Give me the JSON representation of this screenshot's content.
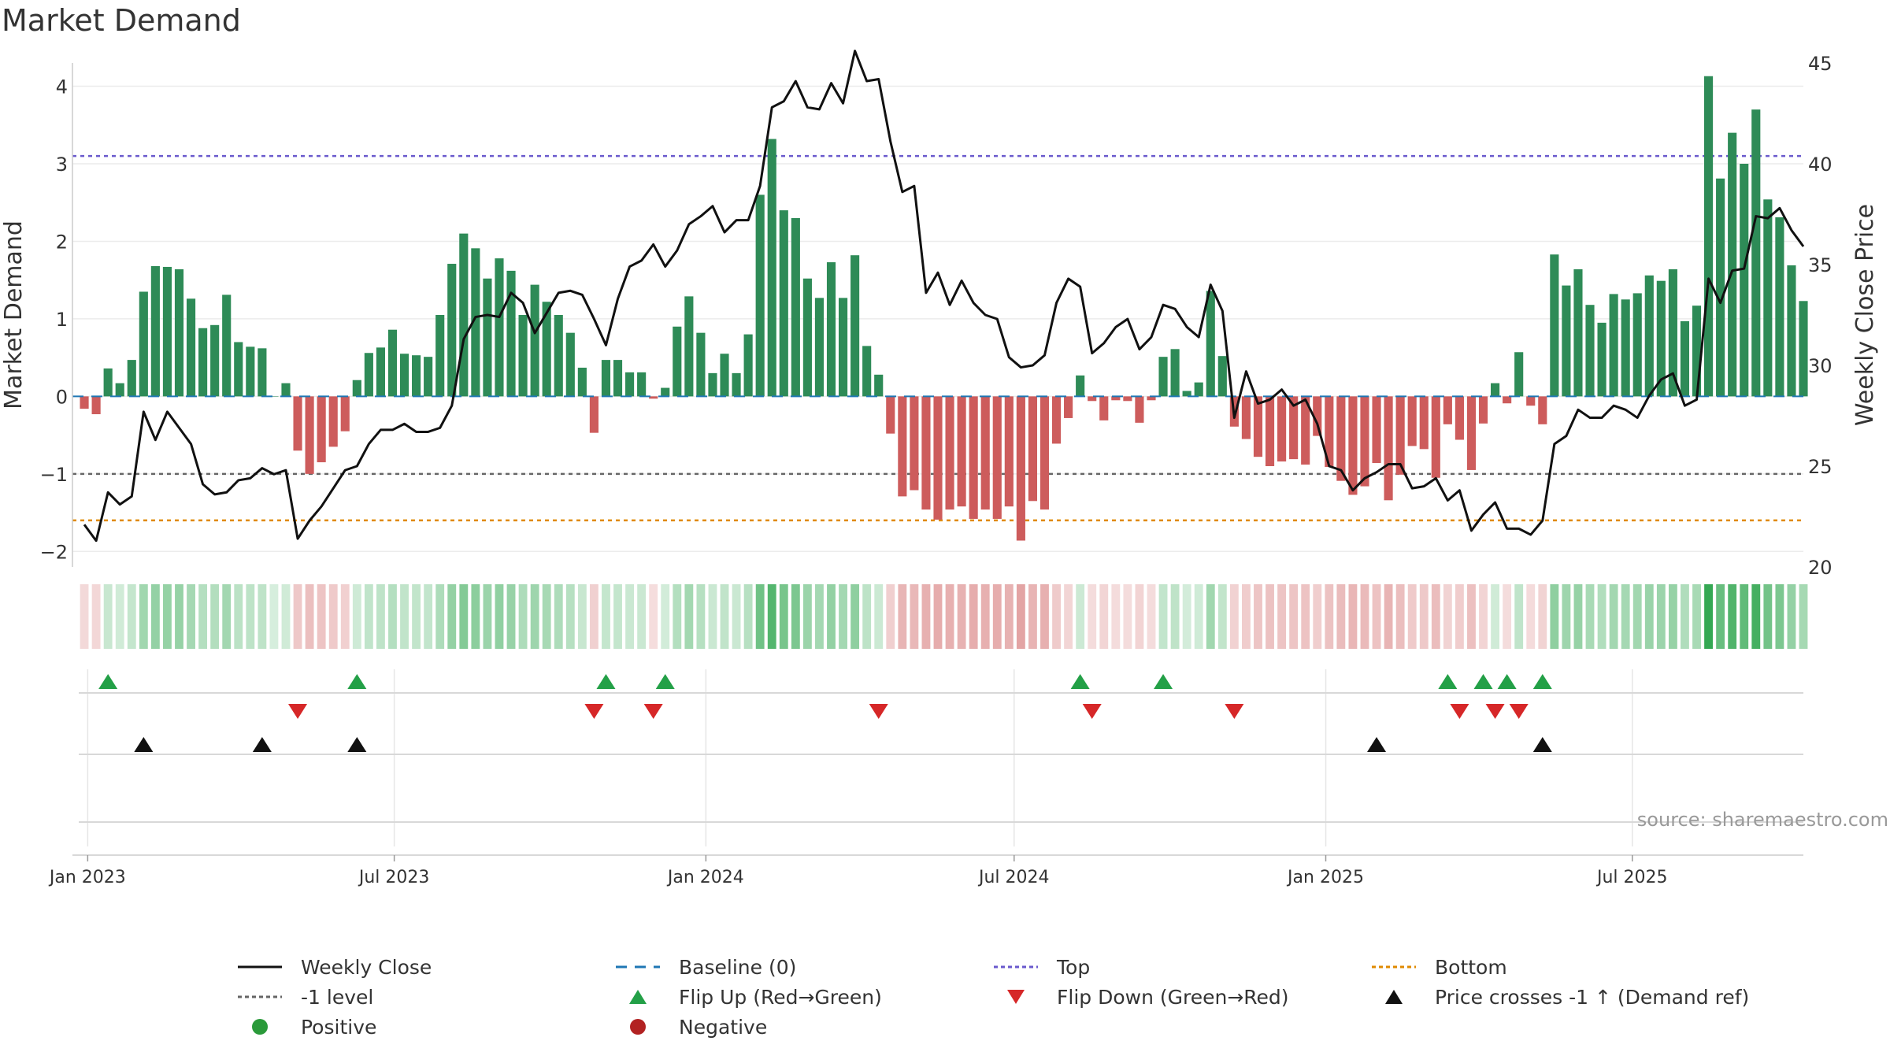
{
  "title": "Market Demand",
  "source_note": "source: sharemaestro.com",
  "colors": {
    "pos_bar": "#2e8b57",
    "neg_bar": "#cd5c5c",
    "close_line": "#111111",
    "baseline": "#1f77b4",
    "top": "#6a5acd",
    "minus1": "#666666",
    "bottom": "#e08a00",
    "flip_up": "#23a047",
    "flip_down": "#d62728",
    "price_cross": "#111111",
    "positive_dot": "#2a9a3a",
    "negative_dot": "#b22222"
  },
  "chart_data": {
    "type": "bar+line",
    "title": "Market Demand",
    "ylabel": "Market Demand",
    "y2label": "Weekly Close Price",
    "ylim": [
      -2.2,
      4.3
    ],
    "y2lim": [
      20,
      45
    ],
    "yticks": [
      -2,
      -1,
      0,
      1,
      2,
      3,
      4
    ],
    "y2ticks": [
      20,
      25,
      30,
      35,
      40,
      45
    ],
    "xlim": [
      "2022-12-23",
      "2025-10-10"
    ],
    "xticks": [
      {
        "label": "Jan 2023",
        "date": "2023-01-01"
      },
      {
        "label": "Jul 2023",
        "date": "2023-07-01"
      },
      {
        "label": "Jan 2024",
        "date": "2024-01-01"
      },
      {
        "label": "Jul 2024",
        "date": "2024-07-01"
      },
      {
        "label": "Jan 2025",
        "date": "2025-01-01"
      },
      {
        "label": "Jul 2025",
        "date": "2025-07-01"
      }
    ],
    "reference_lines": {
      "top": 3.1,
      "minus1": -1.0,
      "bottom": -1.6,
      "baseline": 0
    },
    "start_week": "2022-12-30",
    "weeks": 145,
    "demand": [
      -0.16,
      -0.23,
      0.36,
      0.17,
      0.47,
      1.35,
      1.68,
      1.67,
      1.64,
      1.26,
      0.88,
      0.92,
      1.31,
      0.7,
      0.64,
      0.62,
      0.0,
      0.17,
      -0.7,
      -1.0,
      -0.85,
      -0.65,
      -0.45,
      0.21,
      0.56,
      0.63,
      0.86,
      0.55,
      0.53,
      0.51,
      1.05,
      1.71,
      2.1,
      1.91,
      1.52,
      1.78,
      1.62,
      1.05,
      1.44,
      1.22,
      1.05,
      0.82,
      0.37,
      -0.47,
      0.47,
      0.47,
      0.31,
      0.31,
      -0.03,
      0.11,
      0.9,
      1.29,
      0.82,
      0.3,
      0.55,
      0.3,
      0.8,
      2.6,
      3.32,
      2.4,
      2.3,
      1.52,
      1.27,
      1.73,
      1.27,
      1.82,
      0.65,
      0.28,
      -0.48,
      -1.29,
      -1.21,
      -1.46,
      -1.59,
      -1.46,
      -1.42,
      -1.58,
      -1.46,
      -1.58,
      -1.42,
      -1.86,
      -1.35,
      -1.46,
      -0.61,
      -0.28,
      0.27,
      -0.06,
      -0.31,
      -0.05,
      -0.06,
      -0.34,
      -0.05,
      0.51,
      0.61,
      0.07,
      0.18,
      1.36,
      0.52,
      -0.39,
      -0.55,
      -0.78,
      -0.9,
      -0.84,
      -0.81,
      -0.88,
      -0.51,
      -0.91,
      -1.09,
      -1.27,
      -1.16,
      -0.86,
      -1.34,
      -1.01,
      -0.64,
      -0.68,
      -1.05,
      -0.36,
      -0.56,
      -0.95,
      -0.35,
      0.17,
      -0.09,
      0.57,
      -0.12,
      -0.36,
      1.83,
      1.43,
      1.64,
      1.18,
      0.95,
      1.32,
      1.25,
      1.33,
      1.56,
      1.49,
      1.64,
      0.97,
      1.17,
      4.13,
      2.81,
      3.4,
      3.0,
      3.7,
      2.54,
      2.31,
      1.69,
      1.23
    ],
    "close": [
      22.1,
      21.3,
      23.7,
      23.1,
      23.5,
      27.7,
      26.3,
      27.7,
      26.9,
      26.1,
      24.1,
      23.6,
      23.7,
      24.3,
      24.4,
      24.9,
      24.6,
      24.8,
      21.4,
      22.3,
      23.0,
      23.9,
      24.8,
      25.0,
      26.1,
      26.8,
      26.8,
      27.1,
      26.7,
      26.7,
      26.9,
      28.0,
      31.3,
      32.4,
      32.5,
      32.4,
      33.6,
      33.1,
      31.6,
      32.6,
      33.6,
      33.7,
      33.5,
      32.3,
      31.0,
      33.3,
      34.9,
      35.2,
      36.0,
      34.9,
      35.7,
      37.0,
      37.4,
      37.9,
      36.6,
      37.2,
      37.2,
      38.9,
      42.8,
      43.1,
      44.1,
      42.8,
      42.7,
      44.0,
      43.0,
      45.6,
      44.1,
      44.2,
      41.1,
      38.6,
      38.9,
      33.6,
      34.6,
      33.0,
      34.2,
      33.1,
      32.5,
      32.3,
      30.4,
      29.9,
      30.0,
      30.5,
      33.1,
      34.3,
      33.9,
      30.6,
      31.1,
      31.9,
      32.3,
      30.8,
      31.4,
      33.0,
      32.8,
      31.9,
      31.4,
      34.0,
      32.7,
      27.4,
      29.7,
      28.1,
      28.3,
      28.8,
      28.0,
      28.3,
      27.1,
      25.0,
      24.8,
      23.8,
      24.4,
      24.7,
      25.1,
      25.1,
      23.9,
      24.0,
      24.4,
      23.3,
      23.8,
      21.8,
      22.6,
      23.2,
      21.9,
      21.9,
      21.6,
      22.3,
      26.1,
      26.5,
      27.8,
      27.4,
      27.4,
      28.0,
      27.8,
      27.4,
      28.5,
      29.3,
      29.6,
      28.0,
      28.3,
      34.3,
      33.1,
      34.7,
      34.8,
      37.4,
      37.3,
      37.8,
      36.7,
      35.9
    ]
  },
  "intensity_strip": {
    "label": "",
    "description": "per-week demand intensity"
  },
  "markers": {
    "flip_up_weeks": [
      2,
      23,
      44,
      49,
      84,
      91,
      115,
      118,
      120,
      123
    ],
    "flip_down_weeks": [
      18,
      43,
      48,
      67,
      85,
      97,
      116,
      119,
      121
    ],
    "price_cross_weeks": [
      5,
      15,
      23,
      109,
      123
    ]
  },
  "legend": [
    {
      "label": "Weekly Close",
      "symbol": "line-solid"
    },
    {
      "label": "Baseline (0)",
      "symbol": "line-dash"
    },
    {
      "label": "Top",
      "symbol": "line-dot-purple"
    },
    {
      "label": "Bottom",
      "symbol": "line-dot-orange"
    },
    {
      "label": "-1 level",
      "symbol": "line-dot-grey"
    },
    {
      "label": "Flip Up (Red→Green)",
      "symbol": "triangle-up-green"
    },
    {
      "label": "Flip Down (Green→Red)",
      "symbol": "triangle-down-red"
    },
    {
      "label": "Price crosses -1 ↑ (Demand ref)",
      "symbol": "triangle-up-black"
    },
    {
      "label": "Positive",
      "symbol": "dot-green"
    },
    {
      "label": "Negative",
      "symbol": "dot-red"
    }
  ]
}
